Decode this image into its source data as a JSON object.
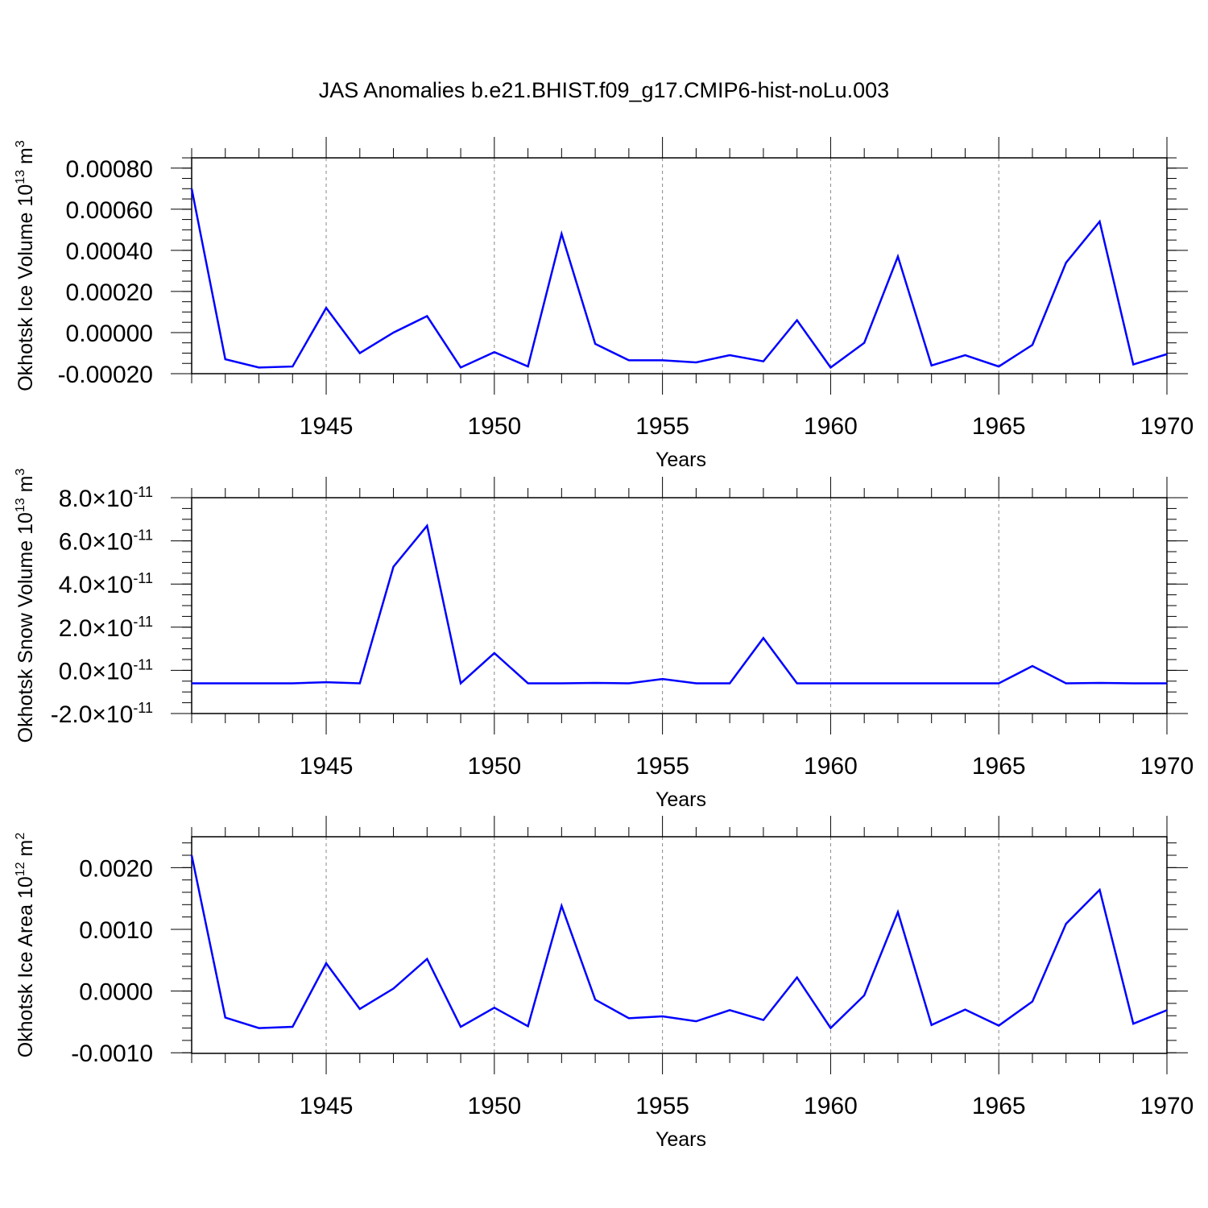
{
  "title": "JAS Anomalies b.e21.BHIST.f09_g17.CMIP6-hist-noLu.003",
  "colors": {
    "line": "#0000ff",
    "axis": "#000000",
    "grid": "#888888"
  },
  "chart_data": [
    {
      "type": "line",
      "ylabel": "Okhotsk Ice Volume",
      "ylabel_unit_base": "10",
      "ylabel_unit_exp": "13",
      "ylabel_unit_suffix": "m",
      "ylabel_unit_suffix_exp": "3",
      "xlabel": "Years",
      "xlim": [
        1941,
        1970
      ],
      "ylim": [
        -0.0002,
        0.00085
      ],
      "yticks": [
        -0.0002,
        0.0,
        0.0002,
        0.0004,
        0.0006,
        0.0008
      ],
      "yticklabels": [
        "-0.00020",
        "0.00000",
        "0.00020",
        "0.00040",
        "0.00060",
        "0.00080"
      ],
      "yminor_step": 5e-05,
      "xticks": [
        1945,
        1950,
        1955,
        1960,
        1965,
        1970
      ],
      "xticklabels": [
        "1945",
        "1950",
        "1955",
        "1960",
        "1965",
        "1970"
      ],
      "grid_x": [
        1945,
        1950,
        1955,
        1960,
        1965
      ],
      "series": [
        {
          "name": "Okhotsk Ice Volume",
          "x": [
            1941,
            1942,
            1943,
            1944,
            1945,
            1946,
            1947,
            1948,
            1949,
            1950,
            1951,
            1952,
            1953,
            1954,
            1955,
            1956,
            1957,
            1958,
            1959,
            1960,
            1961,
            1962,
            1963,
            1964,
            1965,
            1966,
            1967,
            1968,
            1969,
            1970
          ],
          "values": [
            0.0007,
            -0.00013,
            -0.00017,
            -0.000165,
            0.00012,
            -0.0001,
            0.0,
            8e-05,
            -0.00017,
            -9.5e-05,
            -0.000165,
            0.00048,
            -5.5e-05,
            -0.000135,
            -0.000135,
            -0.000145,
            -0.00011,
            -0.00014,
            6e-05,
            -0.00017,
            -5e-05,
            0.00037,
            -0.00016,
            -0.00011,
            -0.000165,
            -6e-05,
            0.00034,
            0.00054,
            -0.000155,
            -0.000105
          ]
        }
      ]
    },
    {
      "type": "line",
      "ylabel": "Okhotsk Snow Volume",
      "ylabel_unit_base": "10",
      "ylabel_unit_exp": "13",
      "ylabel_unit_suffix": "m",
      "ylabel_unit_suffix_exp": "3",
      "xlabel": "Years",
      "xlim": [
        1941,
        1970
      ],
      "ylim": [
        -2e-11,
        8e-11
      ],
      "yticks": [
        -2e-11,
        0.0,
        2e-11,
        4e-11,
        6e-11,
        8e-11
      ],
      "yticklabels": [
        "-2.0",
        "0.0",
        "2.0",
        "4.0",
        "6.0",
        "8.0"
      ],
      "ytick_mult": "×10",
      "ytick_exp": "-11",
      "yminor_step": 5e-12,
      "xticks": [
        1945,
        1950,
        1955,
        1960,
        1965,
        1970
      ],
      "xticklabels": [
        "1945",
        "1950",
        "1955",
        "1960",
        "1965",
        "1970"
      ],
      "grid_x": [
        1945,
        1950,
        1955,
        1960,
        1965
      ],
      "series": [
        {
          "name": "Okhotsk Snow Volume",
          "x": [
            1941,
            1942,
            1943,
            1944,
            1945,
            1946,
            1947,
            1948,
            1949,
            1950,
            1951,
            1952,
            1953,
            1954,
            1955,
            1956,
            1957,
            1958,
            1959,
            1960,
            1961,
            1962,
            1963,
            1964,
            1965,
            1966,
            1967,
            1968,
            1969,
            1970
          ],
          "values": [
            -6e-12,
            -6e-12,
            -6e-12,
            -6e-12,
            -5.5e-12,
            -6e-12,
            4.8e-11,
            6.7e-11,
            -6e-12,
            8e-12,
            -6e-12,
            -6e-12,
            -5.8e-12,
            -6e-12,
            -4e-12,
            -6e-12,
            -6e-12,
            1.5e-11,
            -6e-12,
            -6e-12,
            -6e-12,
            -6e-12,
            -6e-12,
            -6e-12,
            -6e-12,
            2e-12,
            -6e-12,
            -5.8e-12,
            -6e-12,
            -6e-12
          ]
        }
      ]
    },
    {
      "type": "line",
      "ylabel": "Okhotsk Ice Area",
      "ylabel_unit_base": "10",
      "ylabel_unit_exp": "12",
      "ylabel_unit_suffix": "m",
      "ylabel_unit_suffix_exp": "2",
      "xlabel": "Years",
      "xlim": [
        1941,
        1970
      ],
      "ylim": [
        -0.00101,
        0.0025
      ],
      "yticks": [
        -0.001,
        0.0,
        0.001,
        0.002
      ],
      "yticklabels": [
        "-0.0010",
        "0.0000",
        "0.0010",
        "0.0020"
      ],
      "yminor_step": 0.0002,
      "xticks": [
        1945,
        1950,
        1955,
        1960,
        1965,
        1970
      ],
      "xticklabels": [
        "1945",
        "1950",
        "1955",
        "1960",
        "1965",
        "1970"
      ],
      "grid_x": [
        1945,
        1950,
        1955,
        1960,
        1965
      ],
      "series": [
        {
          "name": "Okhotsk Ice Area",
          "x": [
            1941,
            1942,
            1943,
            1944,
            1945,
            1946,
            1947,
            1948,
            1949,
            1950,
            1951,
            1952,
            1953,
            1954,
            1955,
            1956,
            1957,
            1958,
            1959,
            1960,
            1961,
            1962,
            1963,
            1964,
            1965,
            1966,
            1967,
            1968,
            1969,
            1970
          ],
          "values": [
            0.0022,
            -0.00043,
            -0.0006,
            -0.00058,
            0.00045,
            -0.00029,
            4e-05,
            0.00052,
            -0.00058,
            -0.00027,
            -0.00057,
            0.00138,
            -0.00014,
            -0.00044,
            -0.00041,
            -0.00049,
            -0.00031,
            -0.00047,
            0.00022,
            -0.0006,
            -7e-05,
            0.00128,
            -0.00055,
            -0.0003,
            -0.00056,
            -0.00017,
            0.00109,
            0.00164,
            -0.00053,
            -0.00031
          ]
        }
      ]
    }
  ]
}
